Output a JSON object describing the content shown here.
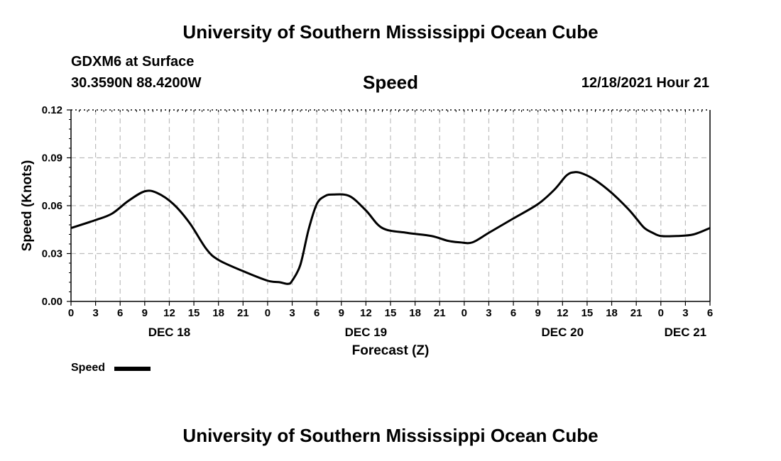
{
  "header": {
    "title_top": "University of Southern Mississippi Ocean Cube",
    "title_bottom": "University of Southern Mississippi Ocean Cube",
    "station": "GDXM6 at Surface",
    "coords": "30.3590N  88.4200W",
    "variable": "Speed",
    "date_hour": "12/18/2021 Hour 21"
  },
  "legend": {
    "label": "Speed"
  },
  "chart_data": {
    "type": "line",
    "title": "Speed",
    "xlabel": "Forecast (Z)",
    "ylabel": "Speed (Knots)",
    "x_unit": "hours from DEC 18 00Z",
    "xlim": [
      0,
      78
    ],
    "ylim": [
      0,
      0.12
    ],
    "y_ticks": [
      "0.00",
      "0.03",
      "0.06",
      "0.09",
      "0.12"
    ],
    "y_tick_values": [
      0,
      0.03,
      0.06,
      0.09,
      0.12
    ],
    "x_tick_labels": [
      "0",
      "3",
      "6",
      "9",
      "12",
      "15",
      "18",
      "21",
      "0",
      "3",
      "6",
      "9",
      "12",
      "15",
      "18",
      "21",
      "0",
      "3",
      "6",
      "9",
      "12",
      "15",
      "18",
      "21",
      "0",
      "3",
      "6"
    ],
    "day_labels": [
      {
        "label": "DEC 18",
        "hour": 12
      },
      {
        "label": "DEC 19",
        "hour": 36
      },
      {
        "label": "DEC 20",
        "hour": 60
      },
      {
        "label": "DEC 21",
        "hour": 75
      }
    ],
    "grid": true,
    "series": [
      {
        "name": "Speed",
        "color": "#000000",
        "x": [
          0,
          3,
          5,
          7,
          9,
          10.5,
          12.5,
          14.5,
          16.5,
          18,
          21,
          24,
          25.5,
          26.5,
          27,
          28,
          29,
          30,
          31,
          32,
          34,
          36,
          38,
          41,
          44,
          46,
          47.5,
          49,
          51,
          54,
          57,
          59,
          60.5,
          61.5,
          62.5,
          64,
          66,
          68,
          69,
          70,
          71,
          72,
          74,
          76,
          78
        ],
        "values": [
          0.046,
          0.051,
          0.055,
          0.063,
          0.069,
          0.068,
          0.061,
          0.049,
          0.033,
          0.026,
          0.019,
          0.013,
          0.012,
          0.011,
          0.013,
          0.023,
          0.045,
          0.061,
          0.066,
          0.067,
          0.066,
          0.057,
          0.046,
          0.043,
          0.041,
          0.038,
          0.037,
          0.037,
          0.043,
          0.052,
          0.061,
          0.07,
          0.079,
          0.081,
          0.08,
          0.076,
          0.068,
          0.058,
          0.052,
          0.046,
          0.043,
          0.041,
          0.041,
          0.042,
          0.046
        ]
      }
    ]
  }
}
